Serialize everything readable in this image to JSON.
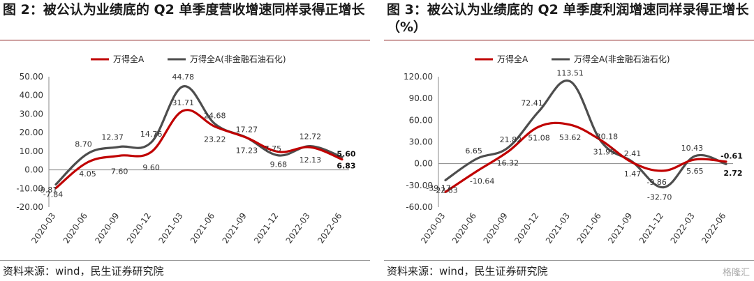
{
  "charts": [
    {
      "title": "图 2：被公认为业绩底的 Q2 单季度营收增速同样录得正增长",
      "source": "资料来源：wind，民生证券研究院",
      "chart_data": {
        "type": "line",
        "categories": [
          "2020-03",
          "2020-06",
          "2020-09",
          "2020-12",
          "2021-03",
          "2021-06",
          "2021-09",
          "2021-12",
          "2022-03",
          "2022-06"
        ],
        "ylim": [
          -20,
          50
        ],
        "yticks": [
          "50.00",
          "40.00",
          "30.00",
          "20.00",
          "10.00",
          "0.00",
          "-10.00",
          "-20.00"
        ],
        "legend_position": "top-center",
        "series": [
          {
            "name": "万得全A",
            "color": "#c00000",
            "values": [
              -9.81,
              4.05,
              7.6,
              9.6,
              31.71,
              23.22,
              17.23,
              9.68,
              12.13,
              5.6
            ],
            "labels": [
              "-9.81",
              "4.05",
              "7.60",
              "9.60",
              "31.71",
              "23.22",
              "17.23",
              "9.68",
              "12.13",
              "5.60"
            ]
          },
          {
            "name": "万得全A(非金融石油石化)",
            "color": "#4d4d4d",
            "values": [
              -7.84,
              8.7,
              12.37,
              14.76,
              44.78,
              24.68,
              17.27,
              7.75,
              12.72,
              6.83
            ],
            "labels": [
              "-7.84",
              "8.70",
              "12.37",
              "14.76",
              "44.78",
              "24.68",
              "17.27",
              "7.75",
              "12.72",
              "6.83"
            ]
          }
        ]
      }
    },
    {
      "title": "图 3：被公认为业绩底的 Q2 单季度利润增速同样录得正增长（%）",
      "source": "资料来源：wind，民生证券研究院",
      "chart_data": {
        "type": "line",
        "categories": [
          "2020-03",
          "2020-06",
          "2020-09",
          "2020-12",
          "2021-03",
          "2021-06",
          "2021-09",
          "2021-12",
          "2022-03",
          "2022-06"
        ],
        "ylim": [
          -60,
          120
        ],
        "yticks": [
          "120.00",
          "90.00",
          "60.00",
          "30.00",
          "0.00",
          "-30.00",
          "-60.00"
        ],
        "legend_position": "top-center",
        "series": [
          {
            "name": "万得全A",
            "color": "#c00000",
            "values": [
              -39.17,
              -10.64,
              16.32,
              51.08,
              53.62,
              31.95,
              1.47,
              -9.86,
              5.65,
              2.72
            ],
            "labels": [
              "-39.17",
              "-10.64",
              "16.32",
              "51.08",
              "53.62",
              "31.95",
              "1.47",
              "-9.86",
              "5.65",
              "2.72"
            ]
          },
          {
            "name": "万得全A(非金融石油石化)",
            "color": "#4d4d4d",
            "values": [
              -22.83,
              6.65,
              21.82,
              72.41,
              113.51,
              30.18,
              2.41,
              -32.7,
              10.43,
              -0.61
            ],
            "labels": [
              "-22.83",
              "6.65",
              "21.82",
              "72.41",
              "113.51",
              "30.18",
              "2.41",
              "-32.70",
              "10.43",
              "-0.61"
            ]
          }
        ]
      }
    }
  ],
  "watermark": "格隆汇"
}
